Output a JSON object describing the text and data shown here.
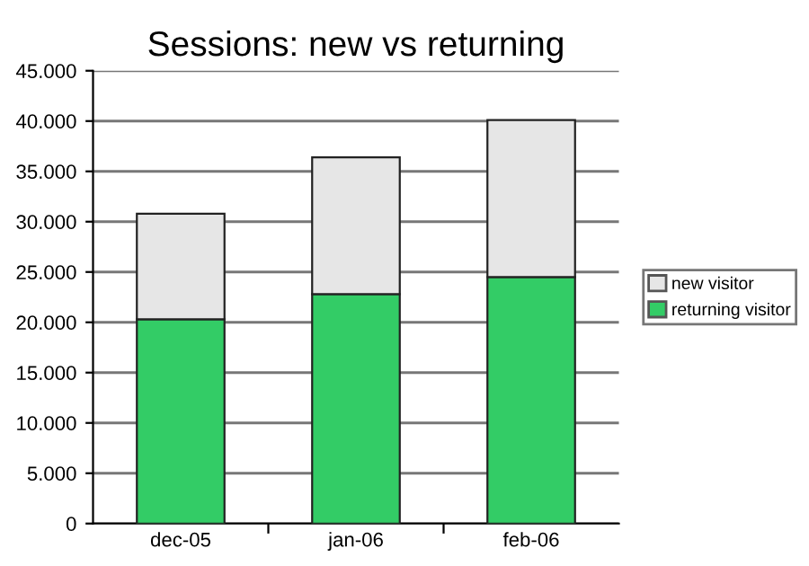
{
  "chart_data": {
    "type": "bar",
    "title": "Sessions: new vs returning",
    "categories": [
      "dec-05",
      "jan-06",
      "feb-06"
    ],
    "stacked": true,
    "series": [
      {
        "name": "returning visitor",
        "color": "#33cc66",
        "values": [
          20300,
          22800,
          24500
        ]
      },
      {
        "name": "new visitor",
        "color": "#e6e6e6",
        "values": [
          10500,
          13600,
          15600
        ]
      }
    ],
    "ylim": [
      0,
      45000
    ],
    "yticks": [
      {
        "value": 0,
        "label": "0"
      },
      {
        "value": 5000,
        "label": "5.000"
      },
      {
        "value": 10000,
        "label": "10.000"
      },
      {
        "value": 15000,
        "label": "15.000"
      },
      {
        "value": 20000,
        "label": "20.000"
      },
      {
        "value": 25000,
        "label": "25.000"
      },
      {
        "value": 30000,
        "label": "30.000"
      },
      {
        "value": 35000,
        "label": "35.000"
      },
      {
        "value": 40000,
        "label": "40.000"
      },
      {
        "value": 45000,
        "label": "45.000"
      }
    ],
    "grid": "y",
    "legend": "right"
  }
}
